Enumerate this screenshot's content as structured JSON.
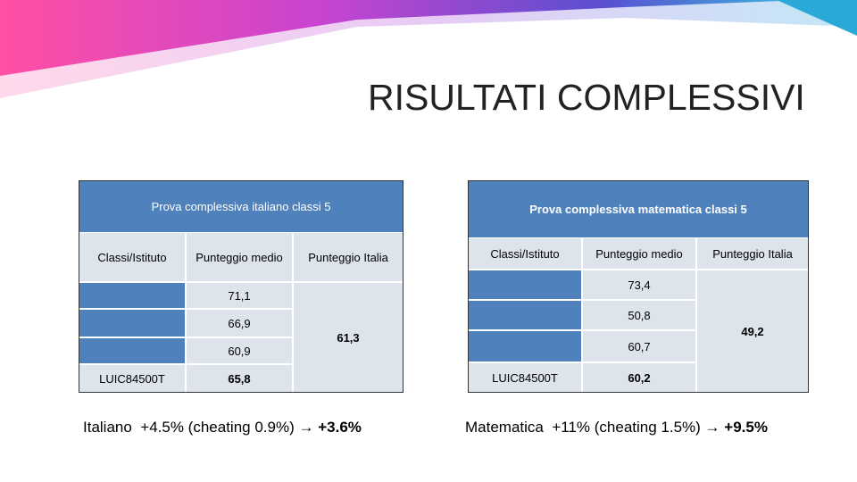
{
  "title": "RISULTATI COMPLESSIVI",
  "tables": [
    {
      "title": "Prova complessiva italiano classi 5",
      "headers": [
        "Classi/Istituto",
        "Punteggio medio",
        "Punteggio Italia"
      ],
      "rows": [
        {
          "medio": "71,1"
        },
        {
          "medio": "66,9"
        },
        {
          "medio": "60,9"
        },
        {
          "istituto": "LUIC84500T",
          "medio": "65,8"
        }
      ],
      "italia": "61,3"
    },
    {
      "title": "Prova complessiva matematica classi 5",
      "headers": [
        "Classi/Istituto",
        "Punteggio medio",
        "Punteggio Italia"
      ],
      "rows": [
        {
          "medio": "73,4"
        },
        {
          "medio": "50,8"
        },
        {
          "medio": "60,7"
        },
        {
          "istituto": "LUIC84500T",
          "medio": "60,2"
        }
      ],
      "italia": "49,2"
    }
  ],
  "notes": [
    {
      "subject": "Italiano",
      "text": "+4.5% (cheating 0.9%) →",
      "result": "+3.6%"
    },
    {
      "subject": "Matematica",
      "text": "+11% (cheating 1.5%) →",
      "result": "+9.5%"
    }
  ]
}
